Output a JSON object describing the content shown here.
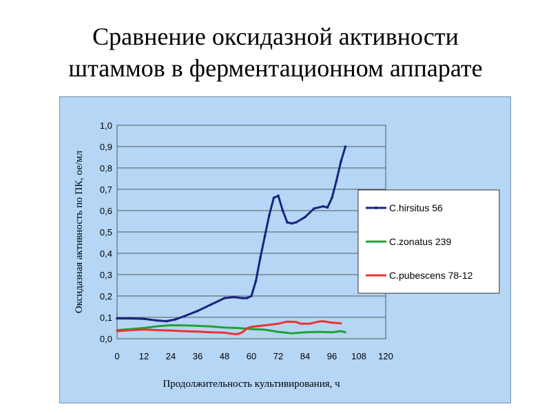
{
  "slide": {
    "title_line1": "Сравнение оксидазной активности",
    "title_line2": "штаммов в ферментационном аппарате"
  },
  "chart_data": {
    "type": "line",
    "xlabel": "Продолжительность культивирования, ч",
    "ylabel": "Оксидазная активность по ПК, ое/мл",
    "xlim": [
      0,
      120
    ],
    "ylim": [
      0,
      1.0
    ],
    "xticks": [
      "0",
      "12",
      "24",
      "36",
      "48",
      "60",
      "72",
      "84",
      "96",
      "108",
      "120"
    ],
    "yticks": [
      "0,0",
      "0,1",
      "0,2",
      "0,3",
      "0,4",
      "0,5",
      "0,6",
      "0,7",
      "0,8",
      "0,9",
      "1,0"
    ],
    "grid": true,
    "legend_position": "right",
    "series": [
      {
        "name": "C.hirsitus 56",
        "color": "#1a237e",
        "marker": "small-dot",
        "x": [
          0,
          6,
          12,
          18,
          22,
          26,
          30,
          36,
          42,
          48,
          52,
          56,
          58,
          60,
          62,
          64,
          66,
          68,
          70,
          72,
          74,
          76,
          78,
          80,
          84,
          88,
          92,
          94,
          96,
          98,
          100,
          102
        ],
        "y": [
          0.095,
          0.095,
          0.093,
          0.085,
          0.082,
          0.09,
          0.105,
          0.13,
          0.16,
          0.19,
          0.195,
          0.19,
          0.19,
          0.2,
          0.27,
          0.38,
          0.48,
          0.58,
          0.66,
          0.67,
          0.6,
          0.545,
          0.54,
          0.545,
          0.57,
          0.61,
          0.62,
          0.615,
          0.66,
          0.74,
          0.83,
          0.9
        ]
      },
      {
        "name": "C.zonatus 239",
        "color": "#22a032",
        "x": [
          0,
          6,
          12,
          18,
          24,
          30,
          36,
          42,
          48,
          54,
          60,
          66,
          72,
          78,
          84,
          90,
          96,
          100,
          102
        ],
        "y": [
          0.04,
          0.045,
          0.05,
          0.058,
          0.063,
          0.062,
          0.06,
          0.057,
          0.052,
          0.05,
          0.045,
          0.042,
          0.032,
          0.025,
          0.03,
          0.032,
          0.03,
          0.035,
          0.03
        ]
      },
      {
        "name": "C.pubescens 78-12",
        "color": "#f03030",
        "x": [
          0,
          6,
          12,
          18,
          24,
          30,
          36,
          42,
          48,
          52,
          54,
          56,
          58,
          60,
          64,
          68,
          72,
          76,
          80,
          82,
          86,
          90,
          92,
          96,
          100
        ],
        "y": [
          0.035,
          0.04,
          0.043,
          0.04,
          0.038,
          0.035,
          0.033,
          0.03,
          0.028,
          0.022,
          0.022,
          0.03,
          0.048,
          0.055,
          0.06,
          0.065,
          0.07,
          0.08,
          0.078,
          0.07,
          0.07,
          0.08,
          0.082,
          0.075,
          0.072
        ]
      }
    ]
  }
}
